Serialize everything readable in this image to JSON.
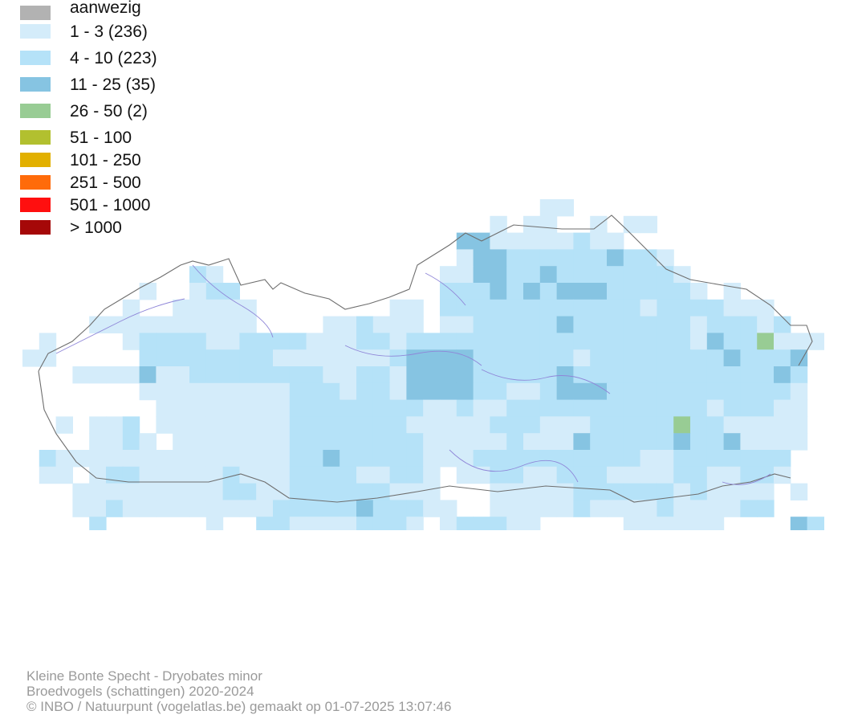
{
  "legend": {
    "items": [
      {
        "label": "aanwezig",
        "color": "#b2b2b2"
      },
      {
        "label": "1 - 3 (236)",
        "color": "#d4ecfa"
      },
      {
        "label": "4 - 10 (223)",
        "color": "#b5e2f8"
      },
      {
        "label": "11 - 25 (35)",
        "color": "#86c4e2"
      },
      {
        "label": "26 - 50 (2)",
        "color": "#98cc94"
      },
      {
        "label": "51 - 100",
        "color": "#b2c02f"
      },
      {
        "label": "101 - 250",
        "color": "#e2b000"
      },
      {
        "label": "251 - 500",
        "color": "#ff6b0a"
      },
      {
        "label": "501 - 1000",
        "color": "#ff0f0f"
      },
      {
        "label": "> 1000",
        "color": "#a50808"
      }
    ]
  },
  "footer": {
    "species": "Kleine Bonte Specht - Dryobates minor",
    "dataset": "Broedvogels (schattingen) 2020-2024",
    "credit": "© INBO / Natuurpunt (vogelatlas.be) gemaakt op 01-07-2025 13:07:46"
  },
  "map": {
    "colors": {
      "1": "#d4ecfa",
      "2": "#b5e2f8",
      "3": "#86c4e2",
      "4": "#98cc94",
      "border": "#6e6e6e",
      "river": "#8f86d8"
    }
  }
}
